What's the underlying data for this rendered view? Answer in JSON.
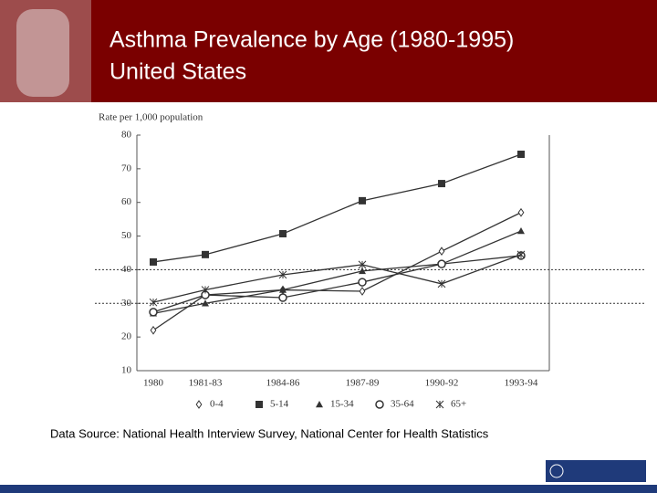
{
  "title_lines": [
    "Asthma Prevalence by Age (1980-1995)",
    "United States"
  ],
  "source": "Data Source:  National Health Interview Survey, National Center for Health Statistics",
  "chart_data": {
    "type": "line",
    "y_label": "Rate per 1,000 population",
    "categories": [
      "1980",
      "1981-83",
      "1984-86",
      "1987-89",
      "1990-92",
      "1993-94"
    ],
    "ylim": [
      10,
      80
    ],
    "yticks": [
      10,
      20,
      30,
      40,
      50,
      60,
      70,
      80
    ],
    "dotted_gridlines": [
      30,
      40
    ],
    "series": [
      {
        "name": "0-4",
        "color": "#333333",
        "marker": "diamond",
        "values": [
          22,
          32.5,
          34,
          33.6,
          45.5,
          57
        ]
      },
      {
        "name": "5-14",
        "color": "#333333",
        "marker": "square",
        "values": [
          42.3,
          44.5,
          50.7,
          60.5,
          65.6,
          74.3
        ]
      },
      {
        "name": "15-34",
        "color": "#333333",
        "marker": "triangle",
        "values": [
          27,
          30,
          34,
          39.6,
          41.7,
          51.5
        ]
      },
      {
        "name": "35-64",
        "color": "#333333",
        "marker": "circle",
        "values": [
          27.4,
          32.5,
          31.7,
          36.3,
          41.7,
          44.2
        ]
      },
      {
        "name": "65+",
        "color": "#333333",
        "marker": "star",
        "values": [
          30.3,
          34,
          38.5,
          41.5,
          35.8,
          44.5
        ]
      }
    ]
  }
}
